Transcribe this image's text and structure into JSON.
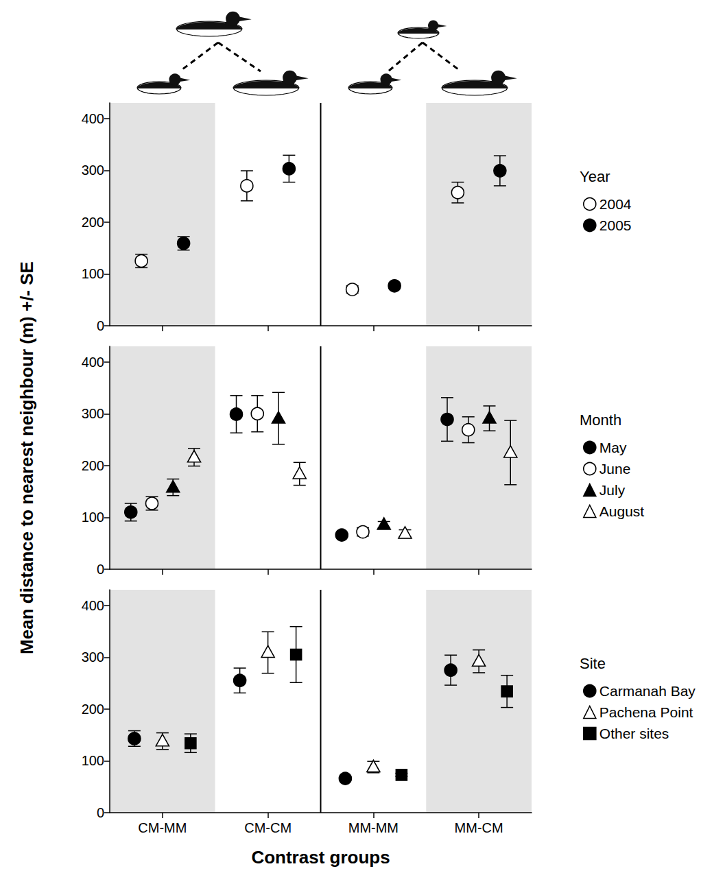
{
  "chart_data": [
    {
      "type": "scatter",
      "legend_title": "Year",
      "legend": "right",
      "tick_labels": "y",
      "categories": [
        "CM-MM",
        "CM-CM",
        "MM-MM",
        "MM-CM"
      ],
      "ylim": [
        0,
        430
      ],
      "yticks": [
        0,
        100,
        200,
        300,
        400
      ],
      "grid": false,
      "series": [
        {
          "name": "2004",
          "color": "#000000",
          "marker": "open_circle",
          "values": [
            125,
            270,
            70,
            257
          ],
          "error": [
            13,
            29,
            7,
            20
          ]
        },
        {
          "name": "2005",
          "color": "#000000",
          "marker": "circle",
          "values": [
            159,
            303,
            77,
            299
          ],
          "error": [
            13,
            26,
            5,
            29
          ]
        }
      ]
    },
    {
      "type": "scatter",
      "legend_title": "Month",
      "legend": "right",
      "tick_labels": "y",
      "ylabel": "Mean distance to nearest neighbour (m) +/- SE",
      "categories": [
        "CM-MM",
        "CM-CM",
        "MM-MM",
        "MM-CM"
      ],
      "ylim": [
        0,
        430
      ],
      "yticks": [
        0,
        100,
        200,
        300,
        400
      ],
      "grid": false,
      "series": [
        {
          "name": "May",
          "color": "#000000",
          "marker": "circle",
          "values": [
            110,
            299,
            66,
            289
          ],
          "error": [
            17,
            36,
            3,
            42
          ]
        },
        {
          "name": "June",
          "color": "#000000",
          "marker": "open_circle",
          "values": [
            127,
            300,
            72,
            269
          ],
          "error": [
            13,
            35,
            8,
            25
          ]
        },
        {
          "name": "July",
          "color": "#000000",
          "marker": "triangle",
          "values": [
            158,
            291,
            86,
            291
          ],
          "error": [
            16,
            50,
            6,
            24
          ]
        },
        {
          "name": "August",
          "color": "#000000",
          "marker": "open_triangle",
          "values": [
            216,
            184,
            69,
            225
          ],
          "error": [
            17,
            22,
            7,
            62
          ]
        }
      ]
    },
    {
      "type": "scatter",
      "legend_title": "Site",
      "legend": "right",
      "xlabel": "Contrast groups",
      "categories": [
        "CM-MM",
        "CM-CM",
        "MM-MM",
        "MM-CM"
      ],
      "ylim": [
        0,
        430
      ],
      "yticks": [
        0,
        100,
        200,
        300,
        400
      ],
      "grid": false,
      "series": [
        {
          "name": "Carmanah Bay",
          "color": "#000000",
          "marker": "circle",
          "values": [
            143,
            255,
            66,
            275
          ],
          "error": [
            15,
            24,
            3,
            29
          ]
        },
        {
          "name": "Pachena Point",
          "color": "#000000",
          "marker": "open_triangle",
          "values": [
            138,
            309,
            88,
            292
          ],
          "error": [
            16,
            40,
            11,
            22
          ]
        },
        {
          "name": "Other sites",
          "color": "#000000",
          "marker": "square",
          "values": [
            134,
            305,
            73,
            234
          ],
          "error": [
            18,
            54,
            3,
            31
          ]
        }
      ]
    }
  ]
}
